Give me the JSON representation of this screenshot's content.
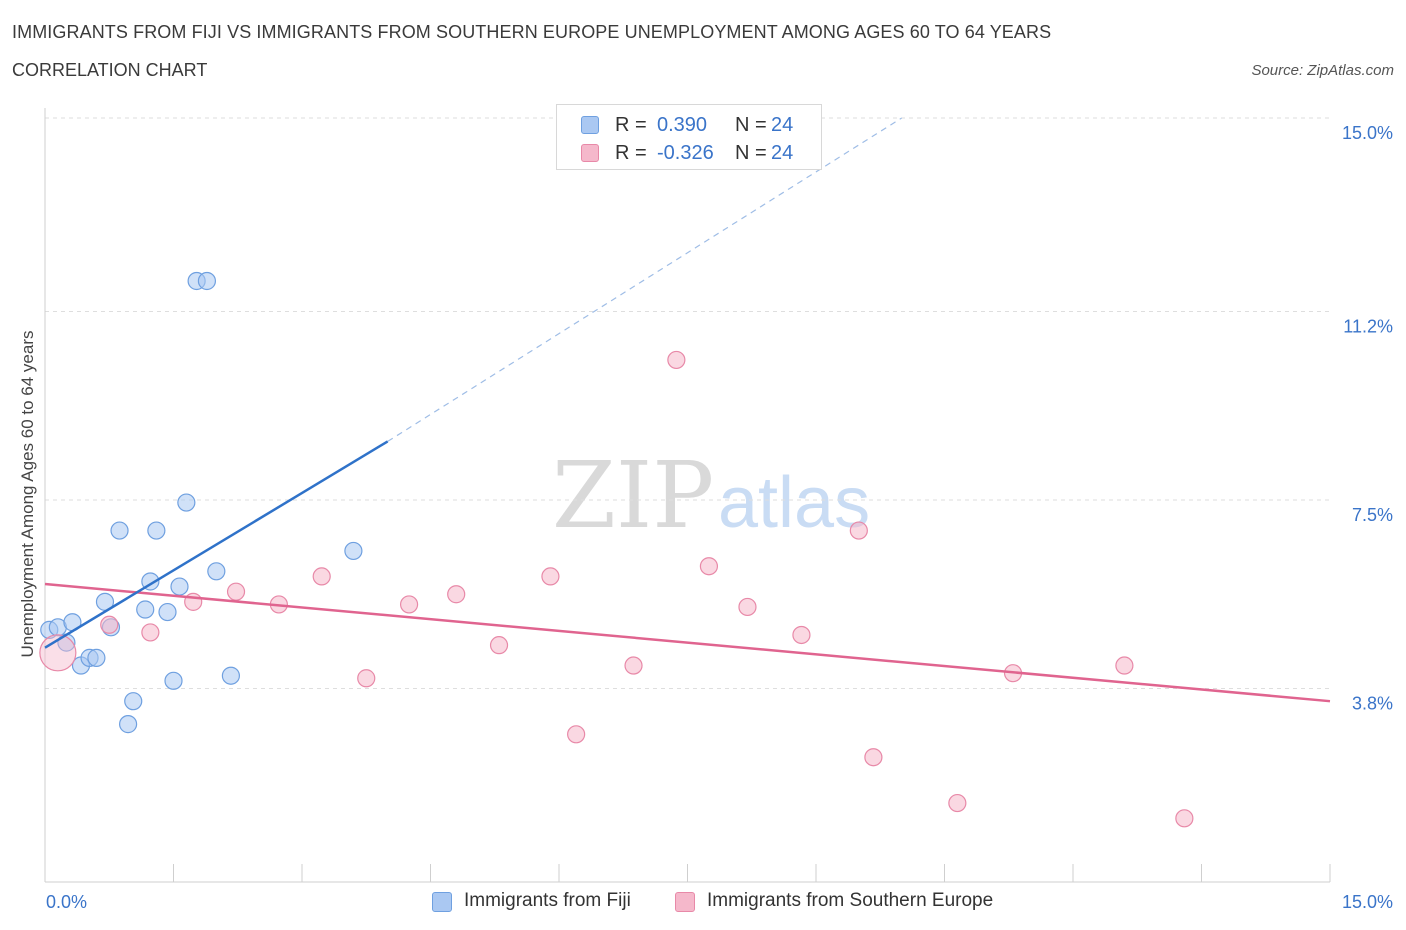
{
  "title": "IMMIGRANTS FROM FIJI VS IMMIGRANTS FROM SOUTHERN EUROPE UNEMPLOYMENT AMONG AGES 60 TO 64 YEARS",
  "subtitle": "CORRELATION CHART",
  "source": "Source: ZipAtlas.com",
  "watermark": {
    "zip": "ZIP",
    "atlas": "atlas"
  },
  "legend_top": [
    {
      "r_label": "R =",
      "r_value": "0.390",
      "n_label": "N =",
      "n_value": "24",
      "color": "#aac8f2"
    },
    {
      "r_label": "R =",
      "r_value": "-0.326",
      "n_label": "N =",
      "n_value": "24",
      "color": "#f5b8cb"
    }
  ],
  "chart_data": {
    "type": "scatter",
    "ylabel": "Unemployment Among Ages 60 to 64 years",
    "xlabel": "",
    "xlim": [
      0,
      15
    ],
    "ylim": [
      0,
      15
    ],
    "x_tick_labels": [
      {
        "value": 0,
        "label": "0.0%"
      },
      {
        "value": 15,
        "label": "15.0%"
      }
    ],
    "y_tick_labels": [
      {
        "value": 3.8,
        "label": "3.8%"
      },
      {
        "value": 7.5,
        "label": "7.5%"
      },
      {
        "value": 11.2,
        "label": "11.2%"
      },
      {
        "value": 15.0,
        "label": "15.0%"
      }
    ],
    "series": [
      {
        "name": "Immigrants from Fiji",
        "color": "#aac8f2",
        "stroke": "#6fa0e0",
        "line_color": "#2f72c9",
        "trend": {
          "x0": 0.0,
          "y0": 4.6,
          "x1_solid": 4.0,
          "y1_solid": 8.65,
          "x1_dash": 10.0,
          "y1_dash": 15.0
        },
        "points": [
          {
            "x": 0.05,
            "y": 4.95
          },
          {
            "x": 0.15,
            "y": 5.0
          },
          {
            "x": 0.25,
            "y": 4.7
          },
          {
            "x": 0.32,
            "y": 5.1
          },
          {
            "x": 0.42,
            "y": 4.25
          },
          {
            "x": 0.52,
            "y": 4.4
          },
          {
            "x": 0.6,
            "y": 4.4
          },
          {
            "x": 0.7,
            "y": 5.5
          },
          {
            "x": 0.77,
            "y": 5.0
          },
          {
            "x": 0.87,
            "y": 6.9
          },
          {
            "x": 0.97,
            "y": 3.1
          },
          {
            "x": 1.03,
            "y": 3.55
          },
          {
            "x": 1.17,
            "y": 5.35
          },
          {
            "x": 1.23,
            "y": 5.9
          },
          {
            "x": 1.3,
            "y": 6.9
          },
          {
            "x": 1.43,
            "y": 5.3
          },
          {
            "x": 1.5,
            "y": 3.95
          },
          {
            "x": 1.57,
            "y": 5.8
          },
          {
            "x": 1.65,
            "y": 7.45
          },
          {
            "x": 1.77,
            "y": 11.8
          },
          {
            "x": 1.89,
            "y": 11.8
          },
          {
            "x": 2.0,
            "y": 6.1
          },
          {
            "x": 2.17,
            "y": 4.05
          },
          {
            "x": 3.6,
            "y": 6.5
          }
        ]
      },
      {
        "name": "Immigrants from Southern Europe",
        "color": "#f5b8cb",
        "stroke": "#e889a8",
        "line_color": "#e0648f",
        "trend": {
          "x0": 0.0,
          "y0": 5.85,
          "x1": 15.0,
          "y1": 3.55
        },
        "points": [
          {
            "x": 0.15,
            "y": 4.5,
            "big": true
          },
          {
            "x": 0.75,
            "y": 5.05
          },
          {
            "x": 1.23,
            "y": 4.9
          },
          {
            "x": 1.73,
            "y": 5.5
          },
          {
            "x": 2.23,
            "y": 5.7
          },
          {
            "x": 2.73,
            "y": 5.45
          },
          {
            "x": 3.23,
            "y": 6.0
          },
          {
            "x": 3.75,
            "y": 4.0
          },
          {
            "x": 4.25,
            "y": 5.45
          },
          {
            "x": 4.8,
            "y": 5.65
          },
          {
            "x": 5.3,
            "y": 4.65
          },
          {
            "x": 5.9,
            "y": 6.0
          },
          {
            "x": 6.2,
            "y": 2.9
          },
          {
            "x": 6.87,
            "y": 4.25
          },
          {
            "x": 7.37,
            "y": 10.25
          },
          {
            "x": 7.75,
            "y": 6.2
          },
          {
            "x": 8.2,
            "y": 5.4
          },
          {
            "x": 8.83,
            "y": 4.85
          },
          {
            "x": 9.5,
            "y": 6.9
          },
          {
            "x": 9.67,
            "y": 2.45
          },
          {
            "x": 10.65,
            "y": 1.55
          },
          {
            "x": 11.3,
            "y": 4.1
          },
          {
            "x": 12.6,
            "y": 4.25
          },
          {
            "x": 13.3,
            "y": 1.25
          }
        ]
      }
    ]
  }
}
